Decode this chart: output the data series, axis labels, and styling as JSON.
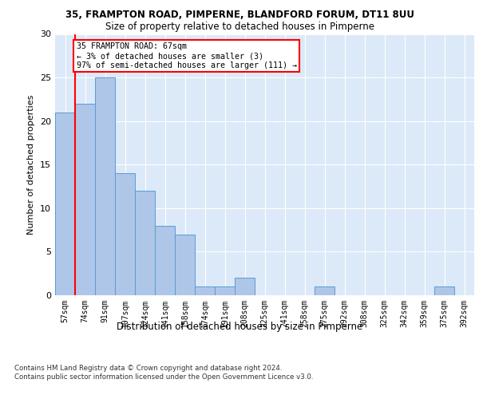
{
  "title_line1": "35, FRAMPTON ROAD, PIMPERNE, BLANDFORD FORUM, DT11 8UU",
  "title_line2": "Size of property relative to detached houses in Pimperne",
  "xlabel": "Distribution of detached houses by size in Pimperne",
  "ylabel": "Number of detached properties",
  "categories": [
    "57sqm",
    "74sqm",
    "91sqm",
    "107sqm",
    "124sqm",
    "141sqm",
    "158sqm",
    "174sqm",
    "191sqm",
    "208sqm",
    "225sqm",
    "241sqm",
    "258sqm",
    "275sqm",
    "292sqm",
    "308sqm",
    "325sqm",
    "342sqm",
    "359sqm",
    "375sqm",
    "392sqm"
  ],
  "values": [
    21,
    22,
    25,
    14,
    12,
    8,
    7,
    1,
    1,
    2,
    0,
    0,
    0,
    1,
    0,
    0,
    0,
    0,
    0,
    1,
    0
  ],
  "bar_color": "#aec6e8",
  "bar_edge_color": "#5b9bd5",
  "annotation_text": "35 FRAMPTON ROAD: 67sqm\n← 3% of detached houses are smaller (3)\n97% of semi-detached houses are larger (111) →",
  "annotation_box_color": "white",
  "annotation_box_edge_color": "red",
  "redline_color": "red",
  "redline_x": 0.5,
  "ylim": [
    0,
    30
  ],
  "yticks": [
    0,
    5,
    10,
    15,
    20,
    25,
    30
  ],
  "background_color": "#dce9f8",
  "grid_color": "white",
  "footer": "Contains HM Land Registry data © Crown copyright and database right 2024.\nContains public sector information licensed under the Open Government Licence v3.0."
}
